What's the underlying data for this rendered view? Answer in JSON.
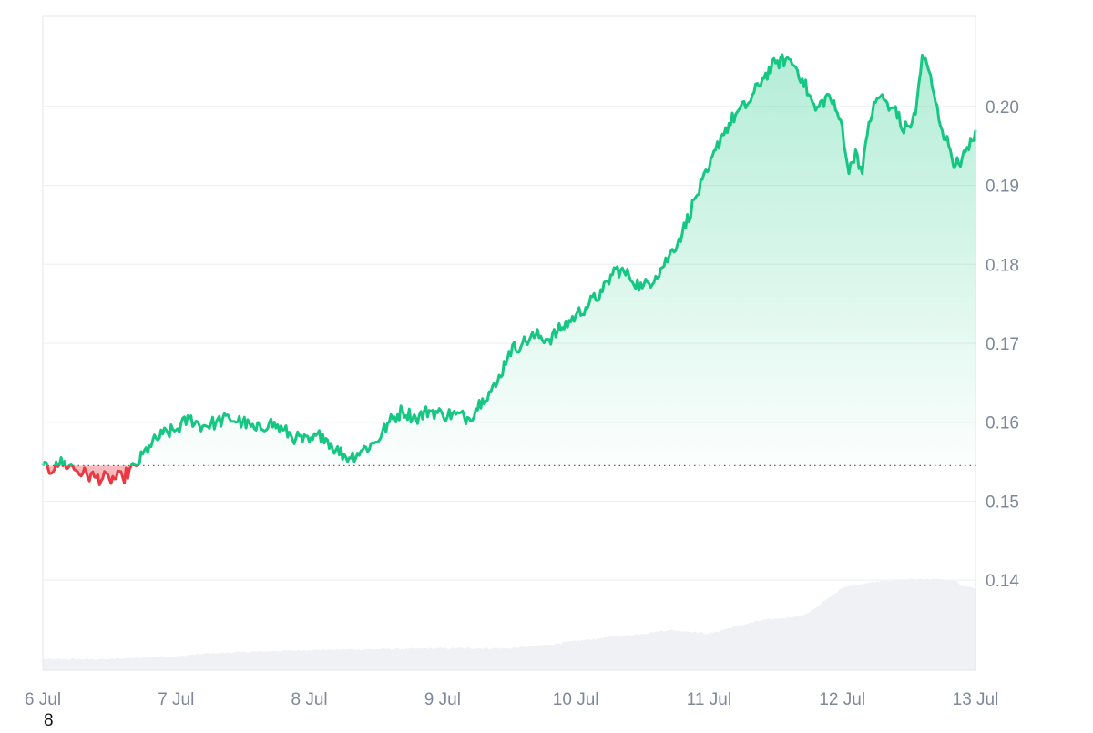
{
  "chart_data": {
    "type": "line",
    "title": "",
    "xlabel": "",
    "ylabel": "",
    "x_tick_labels": [
      "6 Jul",
      "7 Jul",
      "8 Jul",
      "9 Jul",
      "10 Jul",
      "11 Jul",
      "12 Jul",
      "13 Jul"
    ],
    "y_tick_labels": [
      "0.14",
      "0.15",
      "0.16",
      "0.17",
      "0.18",
      "0.19",
      "0.20"
    ],
    "y_ticks": [
      0.14,
      0.15,
      0.16,
      0.17,
      0.18,
      0.19,
      0.2
    ],
    "ylim": [
      0.1286,
      0.2114
    ],
    "xlim": [
      0,
      7
    ],
    "x_unit": "days since 6 Jul",
    "y_axis_position": "right",
    "grid": true,
    "baseline": 0.1545,
    "colors": {
      "above_baseline": "#16c784",
      "below_baseline": "#ea3943",
      "volume": "#eff1f5",
      "baseline_dots": "#666666"
    },
    "series": [
      {
        "values_x": [
          0,
          0.05,
          0.1,
          0.2,
          0.3,
          0.4,
          0.5,
          0.6,
          0.7,
          0.8,
          0.9,
          1.0,
          1.1,
          1.2,
          1.3,
          1.4,
          1.5,
          1.6,
          1.7,
          1.8,
          1.9,
          2.0,
          2.1,
          2.2,
          2.3,
          2.4,
          2.5,
          2.6,
          2.7,
          2.8,
          2.9,
          3.0,
          3.1,
          3.2,
          3.3,
          3.4,
          3.5,
          3.6,
          3.7,
          3.8,
          3.9,
          4.0,
          4.1,
          4.2,
          4.3,
          4.4,
          4.5,
          4.6,
          4.7,
          4.8,
          4.9,
          5.0,
          5.05,
          5.1,
          5.2,
          5.3,
          5.4,
          5.5,
          5.6,
          5.65,
          5.7,
          5.75,
          5.8,
          5.9,
          5.95,
          6.0,
          6.05,
          6.1,
          6.15,
          6.2,
          6.25,
          6.3,
          6.35,
          6.4,
          6.45,
          6.5,
          6.55,
          6.6,
          6.65,
          6.7,
          6.75,
          6.8,
          6.85,
          6.9,
          6.95,
          7.0
        ],
        "values": [
          0.1545,
          0.1535,
          0.155,
          0.1545,
          0.1535,
          0.153,
          0.1528,
          0.153,
          0.1545,
          0.157,
          0.1585,
          0.159,
          0.1605,
          0.1595,
          0.16,
          0.1605,
          0.16,
          0.159,
          0.16,
          0.159,
          0.158,
          0.1575,
          0.1585,
          0.1565,
          0.1555,
          0.1565,
          0.1575,
          0.16,
          0.1615,
          0.1605,
          0.1615,
          0.161,
          0.161,
          0.1605,
          0.163,
          0.1645,
          0.169,
          0.17,
          0.171,
          0.1705,
          0.172,
          0.1735,
          0.175,
          0.1765,
          0.1795,
          0.1785,
          0.177,
          0.1785,
          0.181,
          0.184,
          0.1885,
          0.192,
          0.1945,
          0.1965,
          0.199,
          0.2005,
          0.2035,
          0.2055,
          0.206,
          0.205,
          0.2035,
          0.2015,
          0.1995,
          0.2015,
          0.1995,
          0.1975,
          0.1915,
          0.1945,
          0.1915,
          0.198,
          0.2005,
          0.2015,
          0.1995,
          0.2,
          0.197,
          0.1975,
          0.199,
          0.2065,
          0.2045,
          0.2005,
          0.197,
          0.195,
          0.1925,
          0.1935,
          0.1945,
          0.197
        ]
      }
    ],
    "volume": {
      "values_x": [
        0,
        0.5,
        0.86,
        1.0,
        1.2,
        1.5,
        2.0,
        2.5,
        3.0,
        3.5,
        3.8,
        4.0,
        4.3,
        4.5,
        4.7,
        4.9,
        5.0,
        5.2,
        5.4,
        5.6,
        5.7,
        5.8,
        5.9,
        6.0,
        6.1,
        6.2,
        6.3,
        6.5,
        6.7,
        6.85,
        6.9,
        7.0
      ],
      "values": [
        0.012,
        0.012,
        0.015,
        0.015,
        0.018,
        0.02,
        0.022,
        0.023,
        0.024,
        0.024,
        0.028,
        0.032,
        0.037,
        0.04,
        0.044,
        0.042,
        0.04,
        0.048,
        0.055,
        0.058,
        0.06,
        0.068,
        0.08,
        0.09,
        0.094,
        0.096,
        0.098,
        0.1,
        0.1,
        0.098,
        0.092,
        0.09
      ],
      "max_ref": 0.1
    },
    "stray_text": "8"
  }
}
